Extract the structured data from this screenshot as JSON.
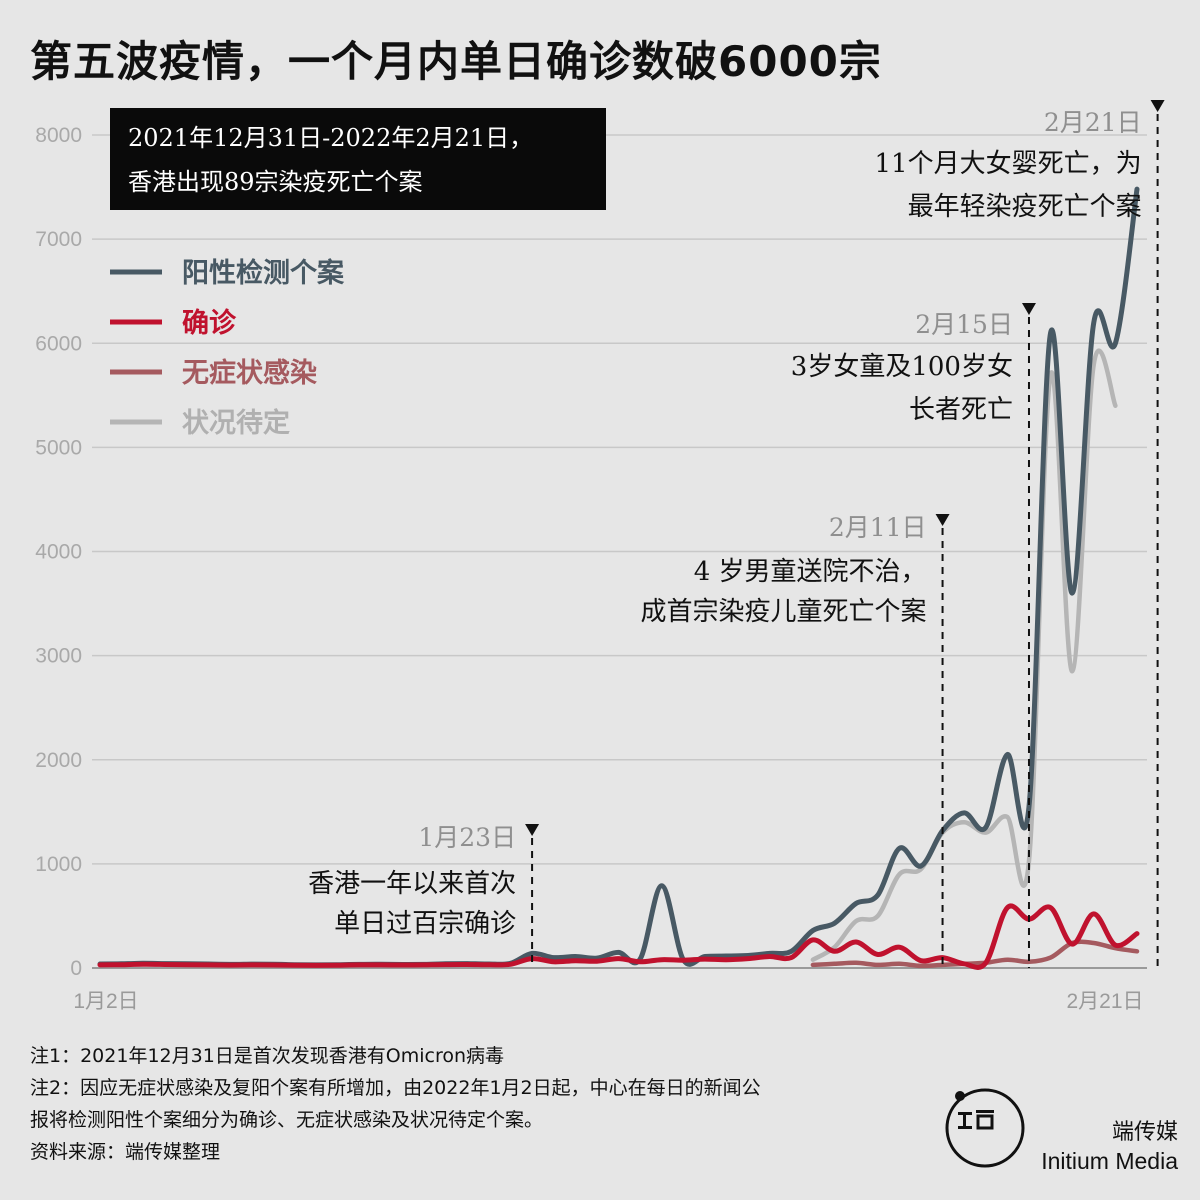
{
  "header": {
    "title": "第五波疫情，一个月内单日确诊数破6000宗"
  },
  "chart_data": {
    "type": "line",
    "title": "第五波疫情，一个月内单日确诊数破6000宗",
    "xlabel": "",
    "ylabel": "",
    "x_start": "1月2日",
    "x_end": "2月21日",
    "x_ticks": [
      "1月2日",
      "2月21日"
    ],
    "y_ticks": [
      0,
      1000,
      2000,
      3000,
      4000,
      5000,
      6000,
      7000,
      8000
    ],
    "ylim": [
      0,
      8000
    ],
    "grid": "horizontal",
    "legend_position": "top-left",
    "series": [
      {
        "name": "阳性检测个案",
        "color": "#485964",
        "values": [
          38,
          40,
          45,
          42,
          40,
          38,
          35,
          37,
          36,
          32,
          30,
          32,
          35,
          36,
          34,
          35,
          40,
          42,
          38,
          45,
          140,
          100,
          110,
          95,
          150,
          85,
          790,
          80,
          110,
          115,
          120,
          140,
          160,
          360,
          430,
          620,
          700,
          1150,
          980,
          1320,
          1490,
          1350,
          2050,
          1550,
          6100,
          3600,
          6200,
          6000,
          7480
        ]
      },
      {
        "name": "确诊",
        "color": "#c0122e",
        "values": [
          30,
          32,
          36,
          34,
          32,
          30,
          28,
          30,
          29,
          27,
          25,
          27,
          30,
          30,
          29,
          30,
          33,
          34,
          31,
          36,
          90,
          60,
          70,
          65,
          90,
          60,
          80,
          75,
          85,
          80,
          90,
          110,
          100,
          270,
          160,
          250,
          130,
          200,
          70,
          100,
          40,
          50,
          580,
          470,
          580,
          230,
          520,
          220,
          330
        ]
      },
      {
        "name": "无症状感染",
        "color": "#a55a5f",
        "values": [
          null,
          null,
          null,
          null,
          null,
          null,
          null,
          null,
          null,
          null,
          null,
          null,
          null,
          null,
          null,
          null,
          null,
          null,
          null,
          null,
          null,
          null,
          null,
          null,
          null,
          null,
          null,
          null,
          null,
          null,
          null,
          null,
          null,
          30,
          40,
          50,
          30,
          40,
          20,
          30,
          40,
          50,
          80,
          60,
          100,
          240,
          240,
          190,
          160
        ]
      },
      {
        "name": "状况待定",
        "color": "#b5b5b5",
        "values": [
          null,
          null,
          null,
          null,
          null,
          null,
          null,
          null,
          null,
          null,
          null,
          null,
          null,
          null,
          null,
          null,
          null,
          null,
          null,
          null,
          null,
          null,
          null,
          null,
          null,
          null,
          null,
          null,
          null,
          null,
          null,
          null,
          null,
          80,
          200,
          450,
          500,
          900,
          950,
          1300,
          1400,
          1300,
          1450,
          1030,
          5700,
          2850,
          5800,
          5400,
          null
        ]
      }
    ],
    "info_box": [
      "2021年12月31日-2022年2月21日，",
      "香港出现89宗染疫死亡个案"
    ],
    "annotations": [
      {
        "date": "1月23日",
        "lines": [
          "香港一年以来首次",
          "单日过百宗确诊"
        ],
        "x_index": 20
      },
      {
        "date": "2月11日",
        "lines": [
          "4 岁男童送院不治，",
          "成首宗染疫儿童死亡个案"
        ],
        "x_index": 39
      },
      {
        "date": "2月15日",
        "lines": [
          "3岁女童及100岁女",
          "长者死亡"
        ],
        "x_index": 43
      },
      {
        "date": "2月21日",
        "lines": [
          "11个月大女婴死亡，为",
          "最年轻染疫死亡个案"
        ],
        "x_index": 49
      }
    ]
  },
  "notes": [
    "注1：2021年12月31日是首次发现香港有Omicron病毒",
    "注2：因应无症状感染及复阳个案有所增加，由2022年1月2日起，中心在每日的新闻公",
    "报将检测阳性个案细分为确诊、无症状感染及状况待定个案。",
    "资料来源：端传媒整理"
  ],
  "branding": {
    "cn": "端传媒",
    "en": "Initium Media"
  }
}
